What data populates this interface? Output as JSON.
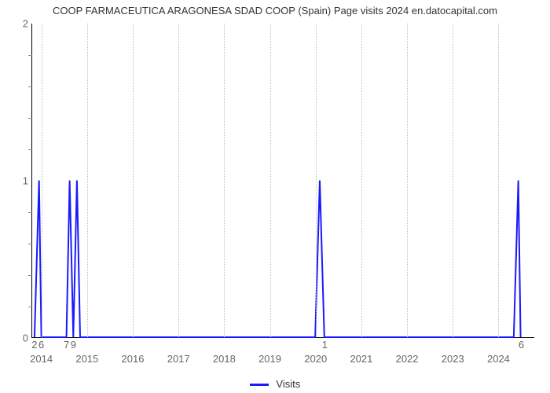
{
  "title": "COOP FARMACEUTICA ARAGONESA SDAD COOP (Spain) Page visits 2024 en.datocapital.com",
  "chart": {
    "type": "line",
    "background_color": "#ffffff",
    "grid_color": "#c0c0c0",
    "axis_color": "#000000",
    "series_color": "#1a1aff",
    "line_width": 2,
    "title_fontsize": 13,
    "tick_fontsize": 13,
    "xlim": [
      2013.8,
      2024.8
    ],
    "ylim": [
      0,
      2
    ],
    "yticks": [
      0,
      1,
      2
    ],
    "yminor_count": 4,
    "xmajor": [
      2014,
      2015,
      2016,
      2017,
      2018,
      2019,
      2020,
      2021,
      2022,
      2023,
      2024
    ],
    "data_points": [
      {
        "x": 2013.85,
        "y": 0,
        "label": "2"
      },
      {
        "x": 2013.95,
        "y": 1
      },
      {
        "x": 2014.0,
        "y": 0,
        "label": "6"
      },
      {
        "x": 2014.55,
        "y": 0,
        "label": "7"
      },
      {
        "x": 2014.62,
        "y": 1
      },
      {
        "x": 2014.7,
        "y": 0,
        "label": "9"
      },
      {
        "x": 2014.78,
        "y": 1
      },
      {
        "x": 2014.85,
        "y": 0
      },
      {
        "x": 2020.0,
        "y": 0
      },
      {
        "x": 2020.1,
        "y": 1
      },
      {
        "x": 2020.2,
        "y": 0,
        "label": "1"
      },
      {
        "x": 2024.35,
        "y": 0
      },
      {
        "x": 2024.45,
        "y": 1
      },
      {
        "x": 2024.5,
        "y": 0,
        "label": "6"
      }
    ]
  },
  "legend": {
    "label": "Visits",
    "swatch_color": "#1a1aff"
  }
}
